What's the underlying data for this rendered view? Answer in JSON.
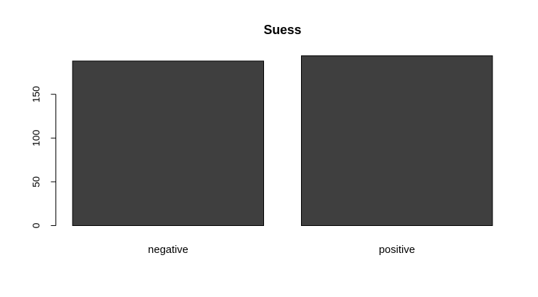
{
  "chart_data": {
    "type": "bar",
    "title": "Suess",
    "categories": [
      "negative",
      "positive"
    ],
    "values": [
      188,
      194
    ],
    "ylim": [
      0,
      194
    ],
    "yticks": [
      0,
      50,
      100,
      150
    ],
    "xlabel": "",
    "ylabel": "",
    "grid": false,
    "legend": "none",
    "bar_color": "#3f3f3f"
  }
}
